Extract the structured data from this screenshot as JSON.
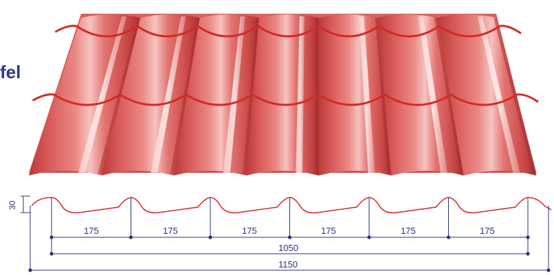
{
  "heading_fragment": "fel",
  "profile": {
    "height_label": "30",
    "module_labels": [
      "175",
      "175",
      "175",
      "175",
      "175",
      "175"
    ],
    "effective_width_label": "1050",
    "total_width_label": "1150"
  },
  "colors": {
    "sheet_base": "#d95a5a",
    "sheet_highlight": "#f3b2ae",
    "sheet_shadow": "#a8302f",
    "step_line": "#d42a25",
    "dimension_line": "#2a2f7a",
    "heading": "#2a3a8c"
  }
}
